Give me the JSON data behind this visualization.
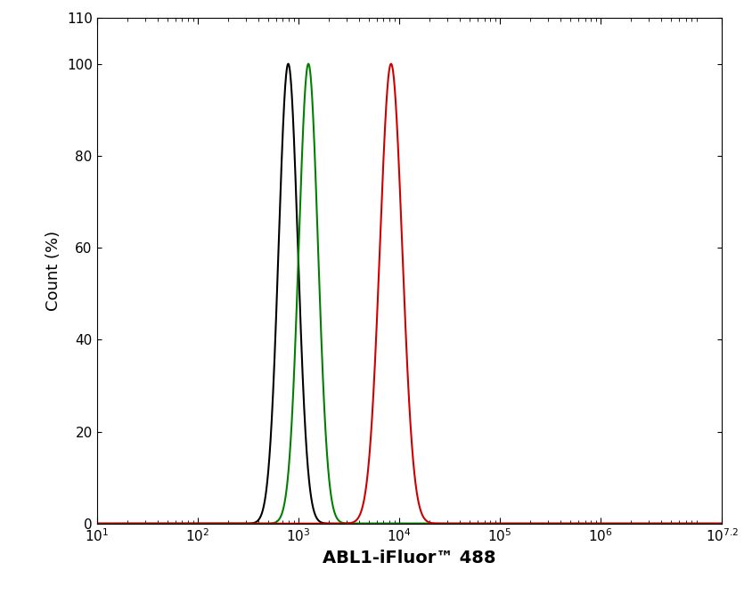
{
  "title": "",
  "xlabel": "ABL1-iFluor™ 488",
  "ylabel": "Count (%)",
  "xlim_log": [
    1,
    7.2
  ],
  "ylim": [
    0,
    110
  ],
  "yticks": [
    0,
    20,
    40,
    60,
    80,
    100,
    110
  ],
  "ytick_labels": [
    "0",
    "20",
    "40",
    "60",
    "80",
    "100",
    "110"
  ],
  "black_peak_log": 2.9,
  "black_sigma_log": 0.095,
  "green_peak_log": 3.1,
  "green_sigma_log": 0.095,
  "red_peak_log": 3.92,
  "red_sigma_log": 0.11,
  "black_color": "#000000",
  "green_color": "#008000",
  "red_color": "#cc0000",
  "linewidth": 1.5,
  "background_color": "#ffffff",
  "xlabel_fontsize": 14,
  "ylabel_fontsize": 13,
  "tick_fontsize": 11
}
